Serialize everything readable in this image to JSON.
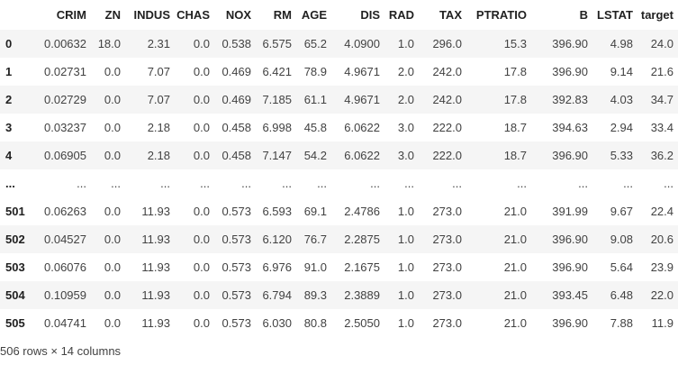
{
  "table": {
    "columns": [
      "CRIM",
      "ZN",
      "INDUS",
      "CHAS",
      "NOX",
      "RM",
      "AGE",
      "DIS",
      "RAD",
      "TAX",
      "PTRATIO",
      "B",
      "LSTAT",
      "target"
    ],
    "rows": [
      {
        "index": "0",
        "cells": [
          "0.00632",
          "18.0",
          "2.31",
          "0.0",
          "0.538",
          "6.575",
          "65.2",
          "4.0900",
          "1.0",
          "296.0",
          "15.3",
          "396.90",
          "4.98",
          "24.0"
        ]
      },
      {
        "index": "1",
        "cells": [
          "0.02731",
          "0.0",
          "7.07",
          "0.0",
          "0.469",
          "6.421",
          "78.9",
          "4.9671",
          "2.0",
          "242.0",
          "17.8",
          "396.90",
          "9.14",
          "21.6"
        ]
      },
      {
        "index": "2",
        "cells": [
          "0.02729",
          "0.0",
          "7.07",
          "0.0",
          "0.469",
          "7.185",
          "61.1",
          "4.9671",
          "2.0",
          "242.0",
          "17.8",
          "392.83",
          "4.03",
          "34.7"
        ]
      },
      {
        "index": "3",
        "cells": [
          "0.03237",
          "0.0",
          "2.18",
          "0.0",
          "0.458",
          "6.998",
          "45.8",
          "6.0622",
          "3.0",
          "222.0",
          "18.7",
          "394.63",
          "2.94",
          "33.4"
        ]
      },
      {
        "index": "4",
        "cells": [
          "0.06905",
          "0.0",
          "2.18",
          "0.0",
          "0.458",
          "7.147",
          "54.2",
          "6.0622",
          "3.0",
          "222.0",
          "18.7",
          "396.90",
          "5.33",
          "36.2"
        ]
      },
      {
        "index": "...",
        "cells": [
          "...",
          "...",
          "...",
          "...",
          "...",
          "...",
          "...",
          "...",
          "...",
          "...",
          "...",
          "...",
          "...",
          "..."
        ]
      },
      {
        "index": "501",
        "cells": [
          "0.06263",
          "0.0",
          "11.93",
          "0.0",
          "0.573",
          "6.593",
          "69.1",
          "2.4786",
          "1.0",
          "273.0",
          "21.0",
          "391.99",
          "9.67",
          "22.4"
        ]
      },
      {
        "index": "502",
        "cells": [
          "0.04527",
          "0.0",
          "11.93",
          "0.0",
          "0.573",
          "6.120",
          "76.7",
          "2.2875",
          "1.0",
          "273.0",
          "21.0",
          "396.90",
          "9.08",
          "20.6"
        ]
      },
      {
        "index": "503",
        "cells": [
          "0.06076",
          "0.0",
          "11.93",
          "0.0",
          "0.573",
          "6.976",
          "91.0",
          "2.1675",
          "1.0",
          "273.0",
          "21.0",
          "396.90",
          "5.64",
          "23.9"
        ]
      },
      {
        "index": "504",
        "cells": [
          "0.10959",
          "0.0",
          "11.93",
          "0.0",
          "0.573",
          "6.794",
          "89.3",
          "2.3889",
          "1.0",
          "273.0",
          "21.0",
          "393.45",
          "6.48",
          "22.0"
        ]
      },
      {
        "index": "505",
        "cells": [
          "0.04741",
          "0.0",
          "11.93",
          "0.0",
          "0.573",
          "6.030",
          "80.8",
          "2.5050",
          "1.0",
          "273.0",
          "21.0",
          "396.90",
          "7.88",
          "11.9"
        ]
      }
    ]
  },
  "shape_text": "506 rows × 14 columns",
  "colors": {
    "stripe": "#f5f5f5",
    "text": "#212121"
  }
}
